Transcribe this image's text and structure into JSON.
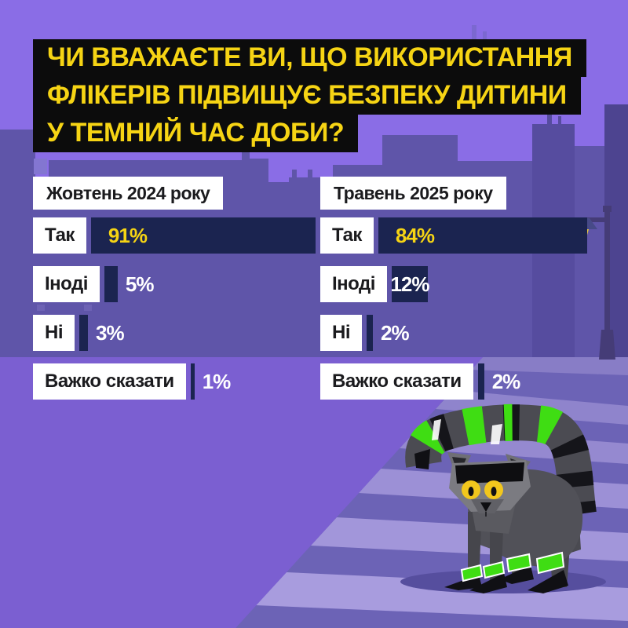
{
  "title": {
    "lines": [
      "ЧИ ВВАЖАЄТЕ ВИ, ЩО ВИКОРИСТАННЯ",
      "ФЛІКЕРІВ ПІДВИЩУЄ БЕЗПЕКУ ДИТИНИ",
      "У ТЕМНИЙ ЧАС ДОБИ?"
    ]
  },
  "chart_data": {
    "type": "bar",
    "orientation": "horizontal",
    "unit": "%",
    "categories": [
      "Так",
      "Іноді",
      "Ні",
      "Важко сказати"
    ],
    "series": [
      {
        "name": "Жовтень 2024 року",
        "values": [
          91,
          5,
          3,
          1
        ]
      },
      {
        "name": "Травень 2025 року",
        "values": [
          84,
          12,
          2,
          2
        ]
      }
    ],
    "value_labels": [
      [
        "91%",
        "5%",
        "3%",
        "1%"
      ],
      [
        "84%",
        "12%",
        "2%",
        "2%"
      ]
    ],
    "xlim": [
      0,
      100
    ],
    "grid": false,
    "legend_position": "none"
  },
  "scene": {
    "mascot": "lemur-with-green-reflectors",
    "props": [
      "city-skyline",
      "street-lamp",
      "zebra-crosswalk"
    ]
  },
  "colors": {
    "background_sky": "#8a6de6",
    "skyline": "#5f55a9",
    "road": "#7b5fd1",
    "crosswalk_stripe": "#a89cde",
    "bar_navy": "#1b2450",
    "accent_yellow": "#f6d414",
    "reflector_green": "#3fdd13",
    "title_background": "#0c0c0c",
    "label_box": "#ffffff"
  }
}
